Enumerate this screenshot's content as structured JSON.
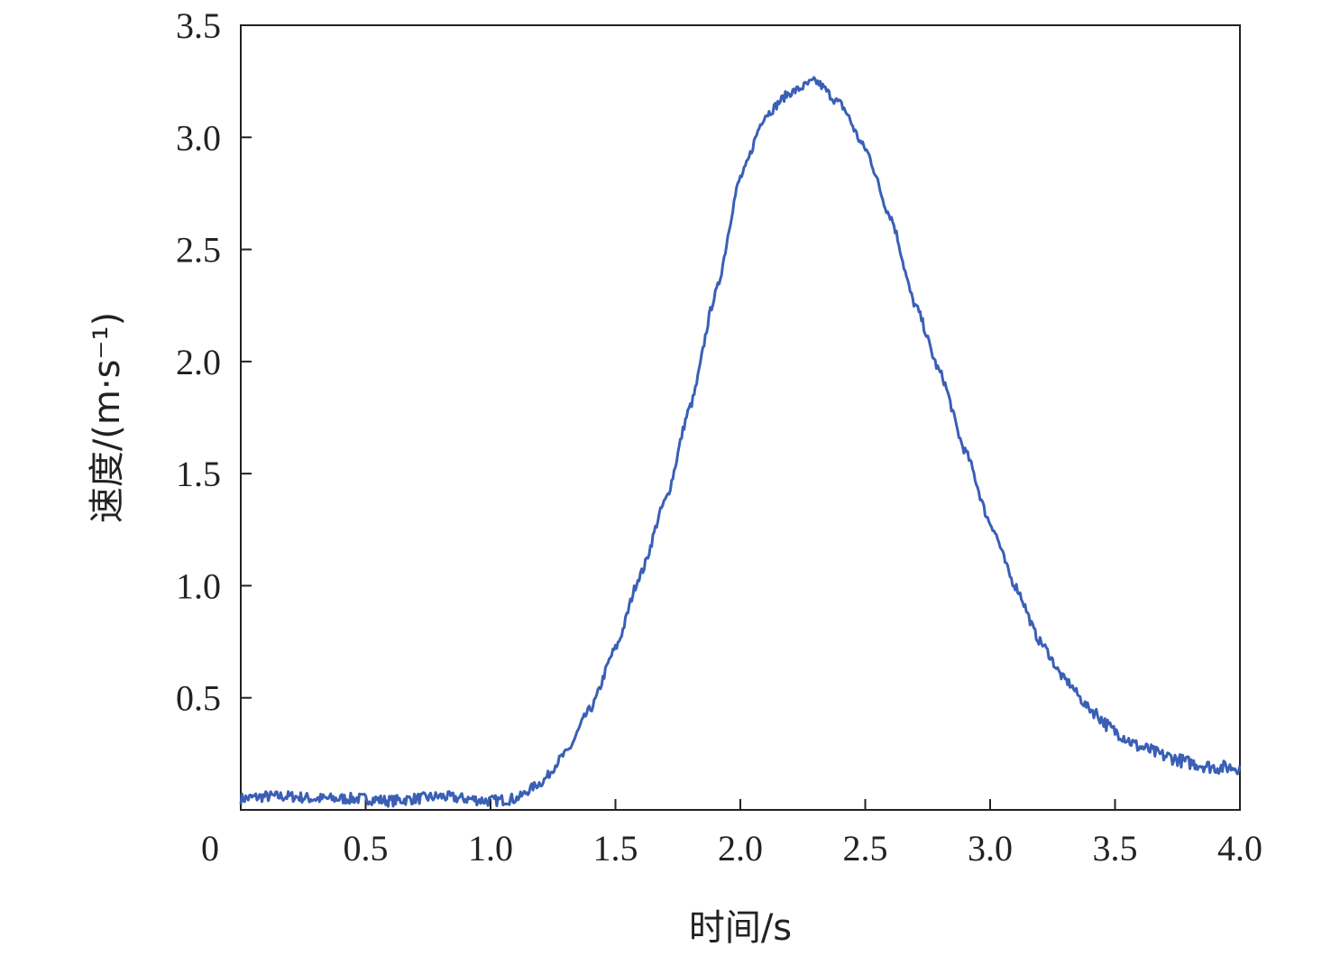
{
  "chart_data": {
    "type": "line",
    "title": "",
    "xlabel": "时间/s",
    "ylabel": "速度/(m·s⁻¹)",
    "xlim": [
      0,
      4.0
    ],
    "ylim": [
      0,
      3.5
    ],
    "x_ticks": [
      "0",
      "0.5",
      "1.0",
      "1.5",
      "2.0",
      "2.5",
      "3.0",
      "3.5",
      "4.0"
    ],
    "y_ticks": [
      "0.5",
      "1.0",
      "1.5",
      "2.0",
      "2.5",
      "3.0",
      "3.5"
    ],
    "grid": false,
    "legend": "none",
    "line_color": "#3a5fb5",
    "series": [
      {
        "x": [
          0,
          0.1,
          0.2,
          0.3,
          0.4,
          0.5,
          0.6,
          0.7,
          0.8,
          0.9,
          1.0,
          1.1,
          1.2,
          1.3,
          1.4,
          1.5,
          1.6,
          1.7,
          1.8,
          1.9,
          2.0,
          2.1,
          2.2,
          2.3,
          2.4,
          2.5,
          2.6,
          2.7,
          2.8,
          2.9,
          3.0,
          3.1,
          3.2,
          3.3,
          3.4,
          3.5,
          3.6,
          3.7,
          3.8,
          3.9,
          4.0
        ],
        "y": [
          0.05,
          0.06,
          0.06,
          0.05,
          0.05,
          0.05,
          0.04,
          0.05,
          0.06,
          0.05,
          0.04,
          0.05,
          0.12,
          0.25,
          0.45,
          0.72,
          1.05,
          1.38,
          1.8,
          2.3,
          2.82,
          3.1,
          3.2,
          3.25,
          3.15,
          2.95,
          2.65,
          2.25,
          1.95,
          1.6,
          1.28,
          1.0,
          0.75,
          0.58,
          0.45,
          0.35,
          0.28,
          0.24,
          0.21,
          0.19,
          0.19
        ]
      }
    ]
  }
}
